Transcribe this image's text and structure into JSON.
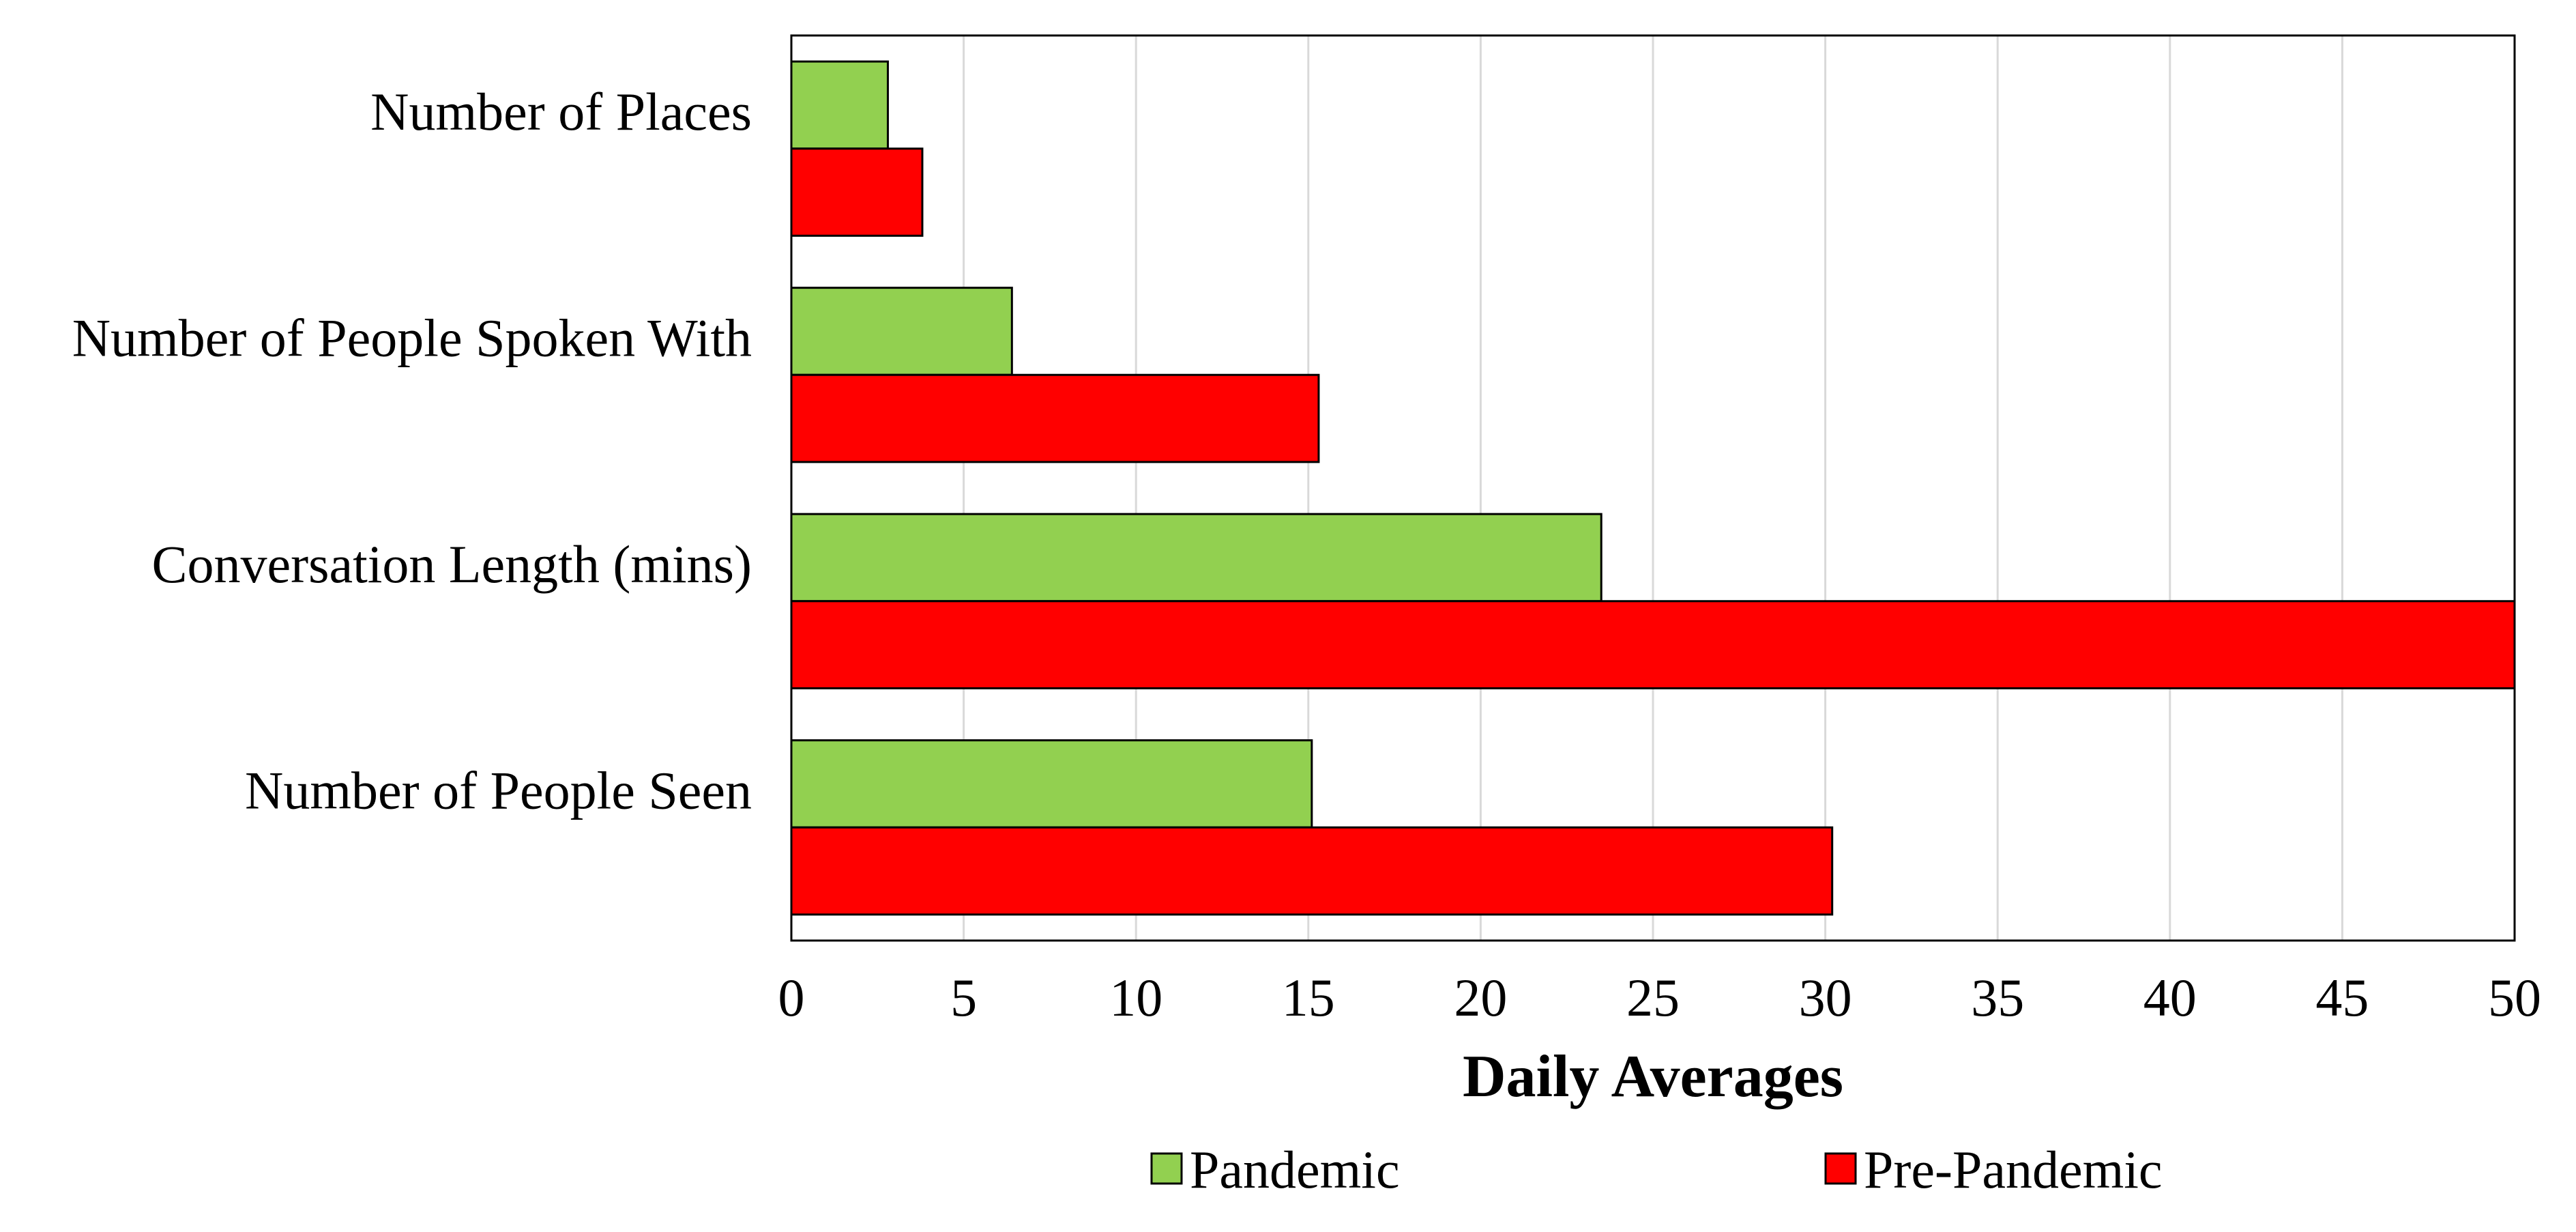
{
  "chart_data": {
    "type": "bar",
    "orientation": "horizontal",
    "categories": [
      "Number of Places",
      "Number of People Spoken With",
      "Conversation Length (mins)",
      "Number of People Seen"
    ],
    "series": [
      {
        "name": "Pandemic",
        "color": "#92d050",
        "values": [
          2.8,
          6.4,
          23.5,
          15.1
        ]
      },
      {
        "name": "Pre-Pandemic",
        "color": "#ff0000",
        "values": [
          3.8,
          15.3,
          50,
          30.2
        ]
      }
    ],
    "xlabel": "Daily Averages",
    "ylabel": "",
    "xlim": [
      0,
      50
    ],
    "xticks": [
      0,
      5,
      10,
      15,
      20,
      25,
      30,
      35,
      40,
      45,
      50
    ],
    "xtick_labels": [
      "0",
      "5",
      "10",
      "15",
      "20",
      "25",
      "30",
      "35",
      "40",
      "45",
      "50"
    ],
    "grid": true,
    "legend_position": "bottom"
  }
}
